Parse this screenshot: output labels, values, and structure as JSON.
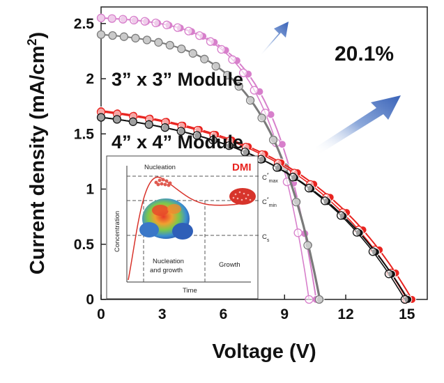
{
  "chart_data": {
    "type": "line",
    "xlabel": "Voltage (V)",
    "ylabel_main": "Current density (mA/cm",
    "ylabel_sup": "2",
    "ylabel_close": ")",
    "xlim": [
      0,
      16
    ],
    "ylim": [
      0,
      2.65
    ],
    "xticks": [
      0,
      3,
      6,
      9,
      12,
      15
    ],
    "yticks": [
      0,
      0.5,
      1,
      1.5,
      2,
      2.5
    ],
    "annotations": {
      "module_3x3": "3” x 3” Module",
      "module_4x4": "4” x 4” Module",
      "efficiency": "20.1%"
    },
    "series": [
      {
        "color": "#d77fcb",
        "marker": "filled",
        "isc": 2.55,
        "voc": 10.55,
        "n": 5,
        "vt": 0.42
      },
      {
        "color": "#d77fcb",
        "marker": "open",
        "isc": 2.55,
        "voc": 10.2,
        "n": 5,
        "vt": 0.4
      },
      {
        "color": "#7a7a7a",
        "marker": "filled",
        "isc": 2.4,
        "voc": 10.75,
        "n": 5,
        "vt": 0.5
      },
      {
        "color": "#7a7a7a",
        "marker": "open",
        "isc": 2.4,
        "voc": 10.7,
        "n": 5,
        "vt": 0.5
      },
      {
        "color": "#e8231f",
        "marker": "filled",
        "isc": 1.71,
        "voc": 15.25,
        "n": 7,
        "vt": 0.82
      },
      {
        "color": "#e8231f",
        "marker": "open",
        "isc": 1.7,
        "voc": 15.0,
        "n": 7,
        "vt": 0.8
      },
      {
        "color": "#111111",
        "marker": "filled",
        "isc": 1.65,
        "voc": 15.05,
        "n": 7,
        "vt": 0.82
      },
      {
        "color": "#111111",
        "marker": "open",
        "isc": 1.65,
        "voc": 14.9,
        "n": 7,
        "vt": 0.8
      }
    ]
  },
  "inset": {
    "title_nucleation": "Nucleation",
    "title_dmi": "DMI",
    "ylabel": "Concentration",
    "xlabel": "Time",
    "cmax_base": "C",
    "cmax_sup": "*",
    "cmax_sub": "max",
    "cmin_base": "C",
    "cmin_sup": "*",
    "cmin_sub": "min",
    "cs_base": "C",
    "cs_sub": "s",
    "region_1": "Nucleation",
    "region_1b": "and growth",
    "region_2": "Growth"
  }
}
